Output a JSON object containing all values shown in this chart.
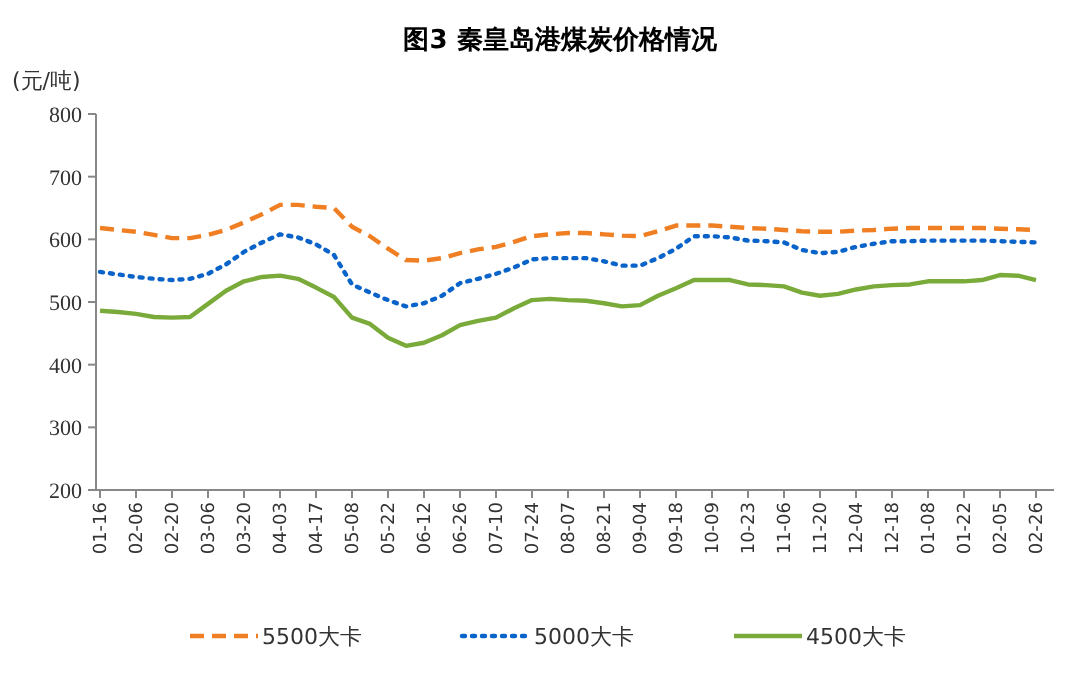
{
  "chart_data": {
    "type": "line",
    "title": "图3  秦皇岛港煤炭价格情况",
    "ylabel": "(元/吨)",
    "categories": [
      "01-16",
      null,
      "02-06",
      null,
      "02-20",
      null,
      "03-06",
      null,
      "03-20",
      null,
      "04-03",
      null,
      "04-17",
      null,
      "05-08",
      null,
      "05-22",
      null,
      "06-12",
      null,
      "06-26",
      null,
      "07-10",
      null,
      "07-24",
      null,
      "08-07",
      null,
      "08-21",
      null,
      "09-04",
      null,
      "09-18",
      null,
      "10-09",
      null,
      "10-23",
      null,
      "11-06",
      null,
      "11-20",
      null,
      "12-04",
      null,
      "12-18",
      null,
      "01-08",
      null,
      "01-22",
      null,
      "02-05",
      null,
      "02-26"
    ],
    "ylim": [
      200,
      800
    ],
    "yticks": [
      200,
      300,
      400,
      500,
      600,
      700,
      800
    ],
    "grid": false,
    "legend": "bottom",
    "marker": "none",
    "series": [
      {
        "name": "5500大卡",
        "color": "#f07f23",
        "line_style": "dashed",
        "values": [
          618,
          615,
          612,
          607,
          602,
          602,
          607,
          615,
          627,
          640,
          655,
          655,
          652,
          650,
          620,
          605,
          585,
          567,
          566,
          570,
          578,
          584,
          588,
          596,
          605,
          608,
          610,
          610,
          608,
          606,
          605,
          613,
          622,
          622,
          622,
          620,
          618,
          617,
          615,
          613,
          612,
          612,
          614,
          615,
          617,
          618,
          618,
          618,
          618,
          618,
          617,
          616,
          615
        ]
      },
      {
        "name": "5000大卡",
        "color": "#0a63c9",
        "line_style": "dotted",
        "values": [
          548,
          544,
          540,
          537,
          535,
          537,
          545,
          560,
          580,
          595,
          608,
          603,
          592,
          575,
          528,
          515,
          503,
          493,
          498,
          510,
          530,
          537,
          545,
          555,
          568,
          570,
          570,
          570,
          565,
          558,
          558,
          570,
          585,
          605,
          605,
          603,
          598,
          597,
          595,
          583,
          578,
          580,
          588,
          593,
          597,
          597,
          598,
          598,
          598,
          598,
          597,
          596,
          595
        ]
      },
      {
        "name": "4500大卡",
        "color": "#7aab3a",
        "line_style": "solid",
        "values": [
          486,
          484,
          481,
          476,
          475,
          476,
          497,
          518,
          533,
          540,
          542,
          537,
          523,
          508,
          475,
          465,
          443,
          430,
          435,
          447,
          463,
          470,
          475,
          490,
          503,
          505,
          503,
          502,
          498,
          493,
          495,
          510,
          522,
          535,
          535,
          535,
          528,
          527,
          525,
          515,
          510,
          513,
          520,
          525,
          527,
          528,
          533,
          533,
          533,
          535,
          543,
          542,
          535
        ]
      }
    ]
  }
}
